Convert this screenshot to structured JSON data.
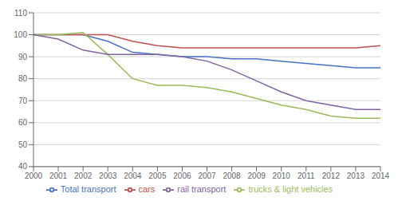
{
  "chart_data": {
    "type": "line",
    "x": [
      2000,
      2001,
      2002,
      2003,
      2004,
      2005,
      2006,
      2007,
      2008,
      2009,
      2010,
      2011,
      2012,
      2013,
      2014
    ],
    "series": [
      {
        "name": "Total transport",
        "color": "#4472C4",
        "values": [
          100,
          100,
          100,
          97,
          92,
          91,
          90,
          90,
          89,
          89,
          88,
          87,
          86,
          85,
          85
        ]
      },
      {
        "name": "cars",
        "color": "#C0504D",
        "values": [
          100,
          100,
          100,
          100,
          97,
          95,
          94,
          94,
          94,
          94,
          94,
          94,
          94,
          94,
          95
        ]
      },
      {
        "name": "trucks & light vehicles",
        "color": "#9BBB59",
        "values": [
          100,
          100,
          101,
          91,
          80,
          77,
          77,
          76,
          74,
          71,
          68,
          66,
          63,
          62,
          62
        ]
      },
      {
        "name": "rail transport",
        "color": "#8064A2",
        "values": [
          100,
          98,
          93,
          91,
          91,
          91,
          90,
          88,
          84,
          79,
          74,
          70,
          68,
          66,
          66
        ]
      }
    ],
    "xlim": [
      2000,
      2014
    ],
    "xticks": [
      2000,
      2001,
      2002,
      2003,
      2004,
      2005,
      2006,
      2007,
      2008,
      2009,
      2010,
      2011,
      2012,
      2013,
      2014
    ],
    "ylim": [
      40,
      110
    ],
    "yticks": [
      40,
      50,
      60,
      70,
      80,
      90,
      100,
      110
    ],
    "grid": true,
    "legend": "bottom"
  }
}
